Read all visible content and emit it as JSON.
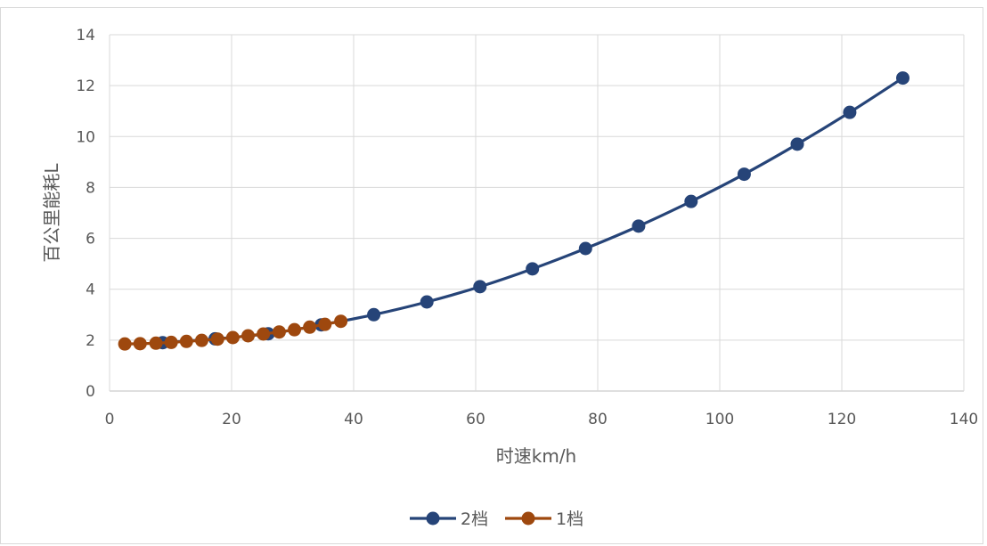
{
  "chart_data": {
    "type": "line",
    "title": "",
    "xlabel": "时速km/h",
    "ylabel": "百公里能耗L",
    "xlim": [
      0,
      140
    ],
    "ylim": [
      0,
      14
    ],
    "xticks": [
      0,
      20,
      40,
      60,
      80,
      100,
      120,
      140
    ],
    "yticks": [
      0,
      2,
      4,
      6,
      8,
      10,
      12,
      14
    ],
    "grid": true,
    "legend_position": "bottom",
    "series": [
      {
        "name": "2档",
        "color": "#264478",
        "x": [
          8.7,
          17.3,
          26.0,
          34.7,
          43.3,
          52.0,
          60.7,
          69.3,
          78.0,
          86.7,
          95.3,
          104.0,
          112.7,
          121.3,
          130.0
        ],
        "y": [
          1.9,
          2.05,
          2.25,
          2.6,
          3.0,
          3.5,
          4.1,
          4.8,
          5.6,
          6.48,
          7.45,
          8.52,
          9.7,
          10.95,
          12.3
        ]
      },
      {
        "name": "1档",
        "color": "#9E480E",
        "x": [
          2.5,
          5.0,
          7.6,
          10.1,
          12.6,
          15.1,
          17.7,
          20.2,
          22.7,
          25.2,
          27.8,
          30.3,
          32.8,
          35.3,
          37.9
        ],
        "y": [
          1.85,
          1.86,
          1.88,
          1.91,
          1.95,
          1.99,
          2.04,
          2.1,
          2.17,
          2.24,
          2.32,
          2.41,
          2.51,
          2.62,
          2.74
        ]
      }
    ]
  }
}
